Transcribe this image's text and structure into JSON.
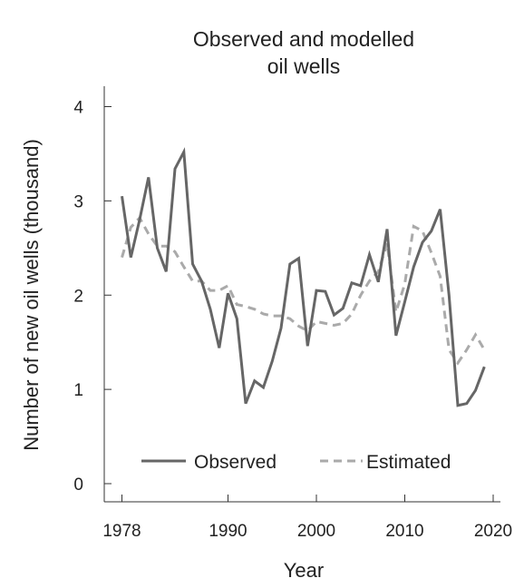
{
  "chart_data": {
    "type": "line",
    "title_lines": [
      "Observed and modelled",
      "oil wells"
    ],
    "xlabel": "Year",
    "ylabel": "Number of new oil wells (thousand)",
    "xlim": [
      1978,
      2020
    ],
    "ylim": [
      0,
      4
    ],
    "xticks": [
      1978,
      1990,
      2000,
      2010,
      2020
    ],
    "yticks": [
      0,
      1,
      2,
      3,
      4
    ],
    "grid": false,
    "legend_position": "bottom",
    "series": [
      {
        "name": "Observed",
        "style": "solid",
        "color": "#666666",
        "x": [
          1978,
          1979,
          1980,
          1981,
          1982,
          1983,
          1984,
          1985,
          1986,
          1987,
          1988,
          1989,
          1990,
          1991,
          1992,
          1993,
          1994,
          1995,
          1996,
          1997,
          1998,
          1999,
          2000,
          2001,
          2002,
          2003,
          2004,
          2005,
          2006,
          2007,
          2008,
          2009,
          2010,
          2011,
          2012,
          2013,
          2014,
          2015,
          2016,
          2017,
          2018,
          2019
        ],
        "values": [
          3.05,
          2.4,
          2.8,
          3.25,
          2.5,
          2.25,
          3.34,
          3.52,
          2.33,
          2.15,
          1.85,
          1.44,
          2.02,
          1.75,
          0.85,
          1.09,
          1.02,
          1.3,
          1.65,
          2.33,
          2.39,
          1.46,
          2.05,
          2.04,
          1.79,
          1.86,
          2.13,
          2.1,
          2.43,
          2.14,
          2.7,
          1.57,
          1.93,
          2.3,
          2.56,
          2.68,
          2.91,
          2.0,
          0.83,
          0.85,
          0.99,
          1.24
        ]
      },
      {
        "name": "Estimated",
        "style": "dashed",
        "color": "#aaaaaa",
        "x": [
          1978,
          1979,
          1980,
          1981,
          1982,
          1983,
          1984,
          1985,
          1986,
          1987,
          1988,
          1989,
          1990,
          1991,
          1992,
          1993,
          1994,
          1995,
          1996,
          1997,
          1998,
          1999,
          2000,
          2001,
          2002,
          2003,
          2004,
          2005,
          2006,
          2007,
          2008,
          2009,
          2010,
          2011,
          2012,
          2013,
          2014,
          2015,
          2016,
          2017,
          2018,
          2019
        ],
        "values": [
          2.4,
          2.72,
          2.82,
          2.65,
          2.52,
          2.52,
          2.46,
          2.3,
          2.15,
          2.15,
          2.05,
          2.05,
          2.1,
          1.9,
          1.88,
          1.85,
          1.8,
          1.78,
          1.78,
          1.75,
          1.67,
          1.62,
          1.72,
          1.7,
          1.68,
          1.7,
          1.8,
          2.0,
          2.15,
          2.25,
          2.55,
          1.82,
          2.12,
          2.73,
          2.68,
          2.45,
          2.2,
          1.42,
          1.28,
          1.42,
          1.58,
          1.42
        ]
      }
    ]
  }
}
